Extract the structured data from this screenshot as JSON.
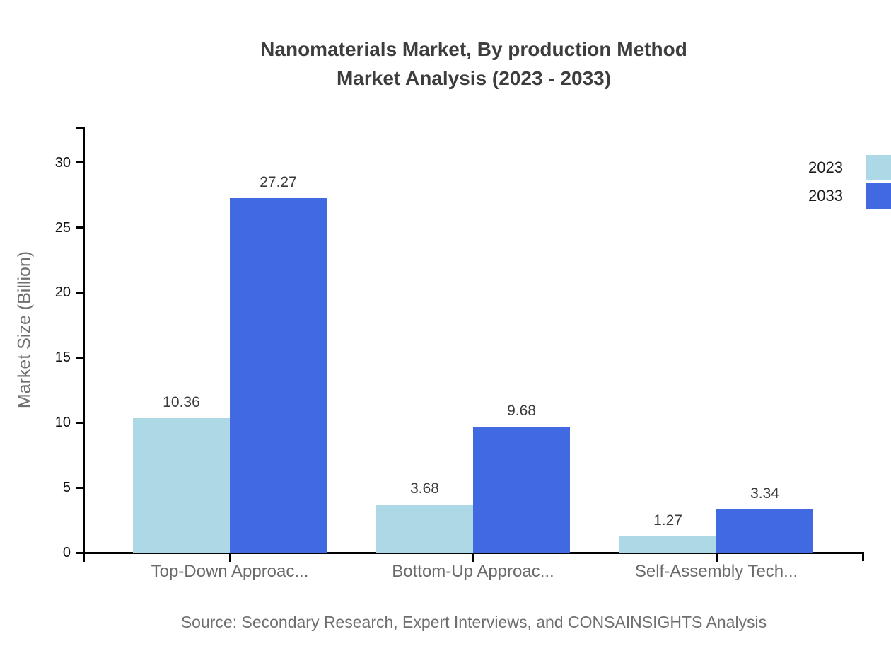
{
  "page": {
    "background": "#ffffff"
  },
  "chart_data": {
    "type": "bar",
    "title_line1": "Nanomaterials Market, By production Method",
    "title_line2": "Market Analysis (2023 - 2033)",
    "ylabel": "Market Size (Billion)",
    "xlabel": "",
    "categories": [
      "Top-Down Approac...",
      "Bottom-Up Approac...",
      "Self-Assembly Tech..."
    ],
    "series": [
      {
        "name": "2023",
        "color": "#add8e6",
        "values": [
          10.36,
          3.68,
          1.27
        ]
      },
      {
        "name": "2033",
        "color": "#4169e1",
        "values": [
          27.27,
          9.68,
          3.34
        ]
      }
    ],
    "value_labels": [
      [
        "10.36",
        "3.68",
        "1.27"
      ],
      [
        "27.27",
        "9.68",
        "3.34"
      ]
    ],
    "yticks": [
      0,
      5,
      10,
      15,
      20,
      25,
      30
    ],
    "ylim": [
      0,
      32.7
    ],
    "grid": false,
    "legend_position": "top-right",
    "source": "Source: Secondary Research, Expert Interviews, and CONSAINSIGHTS Analysis",
    "colors": {
      "title": "#3d3d3d",
      "axis": "#000000",
      "tick_label": "#111111",
      "category_label": "#6a6a6a",
      "value_label": "#3a3a3a",
      "muted_text": "#6f6f6f",
      "legend_text": "#1b1b1b"
    }
  }
}
